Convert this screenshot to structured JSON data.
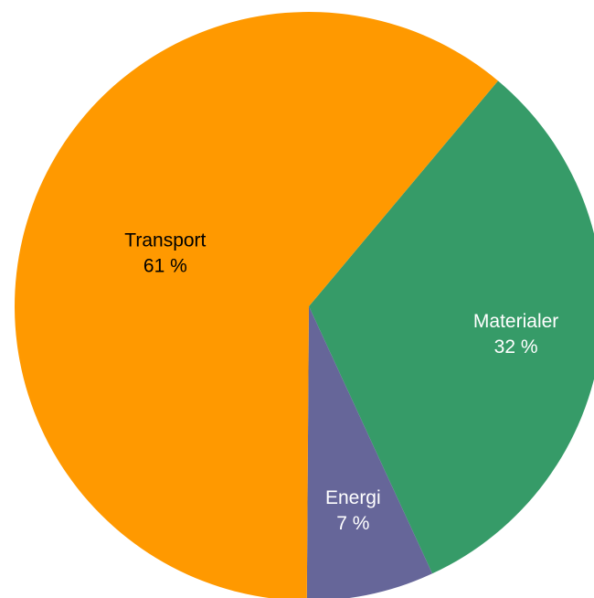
{
  "chart_data": {
    "type": "pie",
    "categories": [
      "Materialer",
      "Energi",
      "Transport"
    ],
    "values": [
      32,
      7,
      61
    ],
    "value_labels": [
      "32 %",
      "7 %",
      "61 %"
    ],
    "colors": [
      "#369b68",
      "#666699",
      "#ff9900"
    ],
    "label_colors": [
      "#ffffff",
      "#ffffff",
      "#000000"
    ]
  }
}
